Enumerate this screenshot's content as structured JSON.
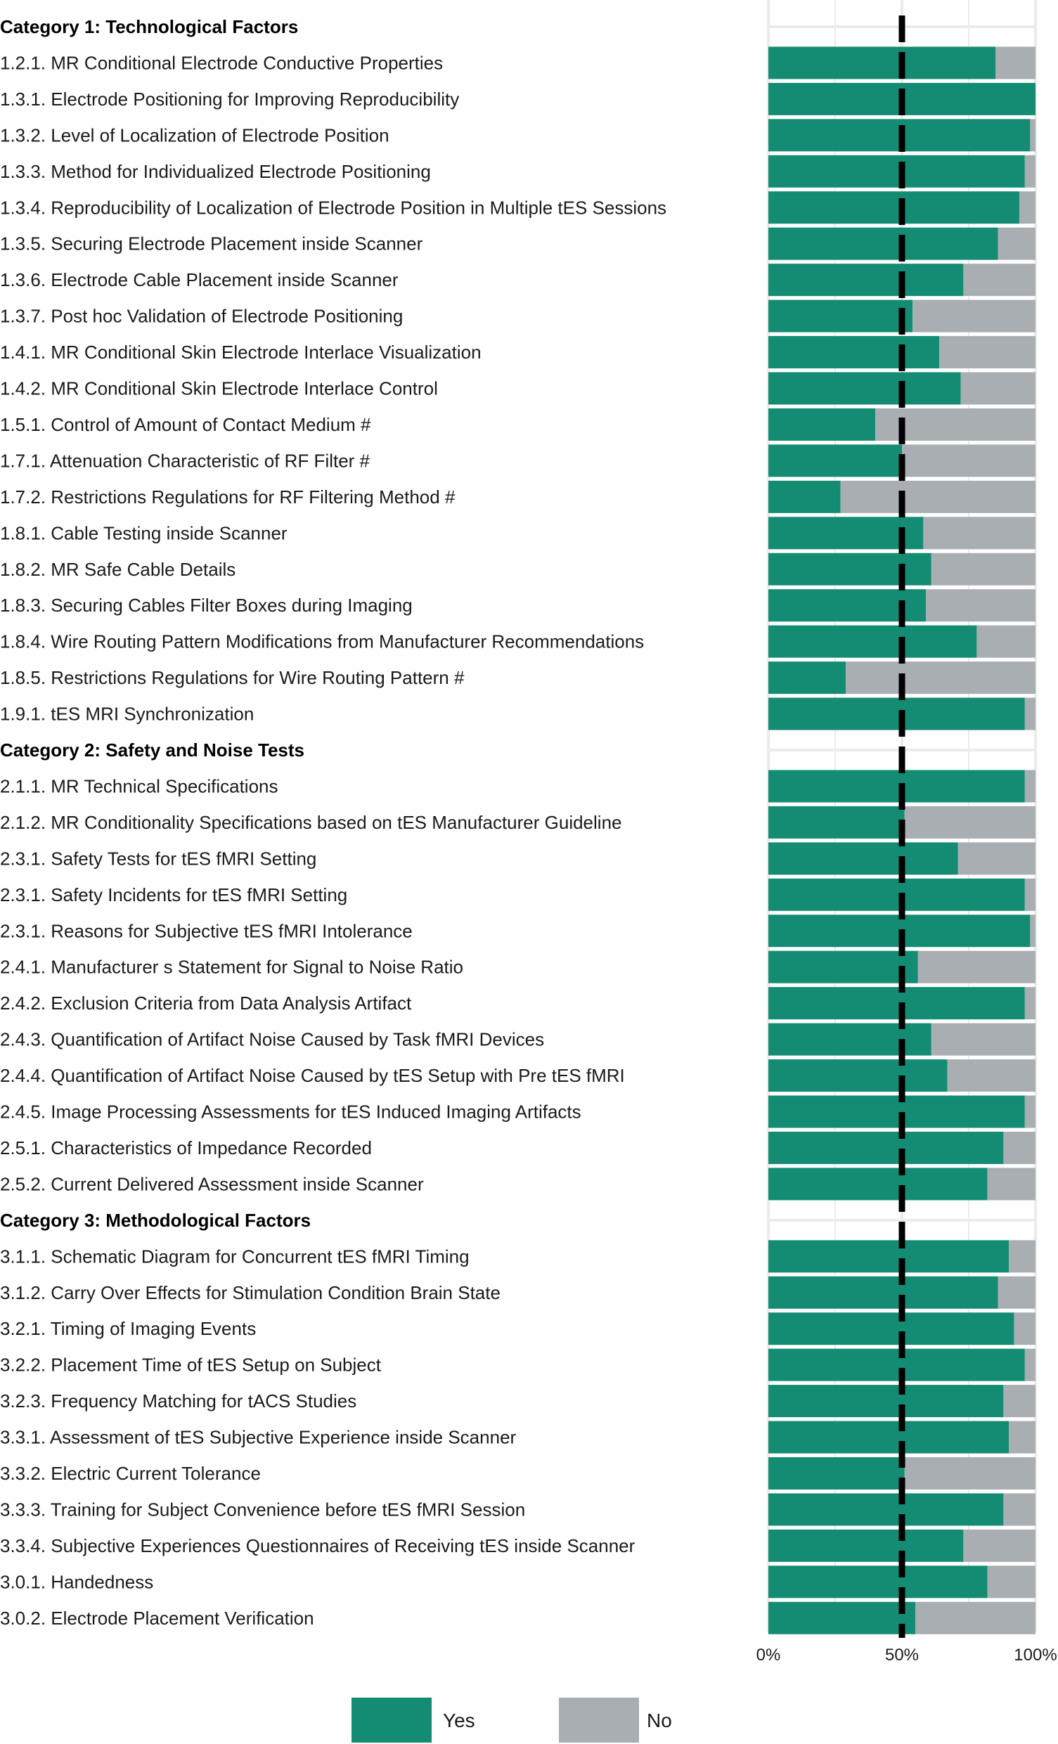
{
  "chart_data": {
    "type": "bar",
    "orientation": "horizontal",
    "stacked": true,
    "xlim": [
      0,
      100
    ],
    "x_ticks": [
      "0%",
      "50%",
      "100%"
    ],
    "reference_line": 50,
    "grid": true,
    "legend_placement": "bottom",
    "colors": {
      "Yes": "#148c73",
      "No": "#a9aeb3"
    },
    "series": [
      {
        "name": "Yes"
      },
      {
        "name": "No"
      }
    ],
    "groups": [
      {
        "title": "Category 1: Technological Factors",
        "items": [
          {
            "label": "1.2.1. MR Conditional Electrode Conductive Properties",
            "yes": 85,
            "no": 15
          },
          {
            "label": "1.3.1. Electrode Positioning for Improving Reproducibility",
            "yes": 100,
            "no": 0
          },
          {
            "label": "1.3.2. Level of Localization of Electrode Position",
            "yes": 98,
            "no": 2
          },
          {
            "label": "1.3.3. Method for Individualized Electrode Positioning",
            "yes": 96,
            "no": 4
          },
          {
            "label": "1.3.4. Reproducibility of Localization of Electrode Position in Multiple tES Sessions",
            "yes": 94,
            "no": 6
          },
          {
            "label": "1.3.5. Securing Electrode Placement inside Scanner",
            "yes": 86,
            "no": 14
          },
          {
            "label": "1.3.6. Electrode Cable Placement inside Scanner",
            "yes": 73,
            "no": 27
          },
          {
            "label": "1.3.7. Post hoc Validation of Electrode Positioning",
            "yes": 54,
            "no": 46
          },
          {
            "label": "1.4.1. MR Conditional Skin Electrode Interlace Visualization",
            "yes": 64,
            "no": 36
          },
          {
            "label": "1.4.2. MR Conditional Skin Electrode Interlace Control",
            "yes": 72,
            "no": 28
          },
          {
            "label": "1.5.1. Control of Amount of Contact Medium #",
            "yes": 40,
            "no": 60
          },
          {
            "label": "1.7.1. Attenuation Characteristic of RF Filter #",
            "yes": 50,
            "no": 50
          },
          {
            "label": "1.7.2. Restrictions Regulations for RF Filtering Method #",
            "yes": 27,
            "no": 73
          },
          {
            "label": "1.8.1. Cable Testing inside Scanner",
            "yes": 58,
            "no": 42
          },
          {
            "label": "1.8.2. MR Safe Cable Details",
            "yes": 61,
            "no": 39
          },
          {
            "label": "1.8.3. Securing Cables Filter Boxes during Imaging",
            "yes": 59,
            "no": 41
          },
          {
            "label": "1.8.4. Wire Routing Pattern Modifications from Manufacturer Recommendations",
            "yes": 78,
            "no": 22
          },
          {
            "label": "1.8.5. Restrictions Regulations for Wire Routing Pattern #",
            "yes": 29,
            "no": 71
          },
          {
            "label": "1.9.1. tES MRI Synchronization",
            "yes": 96,
            "no": 4
          }
        ]
      },
      {
        "title": "Category 2: Safety and Noise Tests",
        "items": [
          {
            "label": "2.1.1. MR Technical Specifications",
            "yes": 96,
            "no": 4
          },
          {
            "label": "2.1.2. MR Conditionality Specifications based on tES Manufacturer Guideline",
            "yes": 51,
            "no": 49
          },
          {
            "label": "2.3.1. Safety Tests for tES fMRI Setting",
            "yes": 71,
            "no": 29
          },
          {
            "label": "2.3.1. Safety Incidents for tES fMRI Setting",
            "yes": 96,
            "no": 4
          },
          {
            "label": "2.3.1. Reasons for Subjective tES fMRI Intolerance",
            "yes": 98,
            "no": 2
          },
          {
            "label": "2.4.1. Manufacturer s Statement for Signal to Noise Ratio",
            "yes": 56,
            "no": 44
          },
          {
            "label": "2.4.2. Exclusion Criteria from Data Analysis Artifact",
            "yes": 96,
            "no": 4
          },
          {
            "label": "2.4.3. Quantification of Artifact Noise Caused by Task fMRI Devices",
            "yes": 61,
            "no": 39
          },
          {
            "label": "2.4.4. Quantification of Artifact Noise Caused by tES Setup with Pre tES fMRI",
            "yes": 67,
            "no": 33
          },
          {
            "label": "2.4.5. Image Processing Assessments for tES Induced Imaging Artifacts",
            "yes": 96,
            "no": 4
          },
          {
            "label": "2.5.1. Characteristics of Impedance Recorded",
            "yes": 88,
            "no": 12
          },
          {
            "label": "2.5.2. Current Delivered Assessment inside Scanner",
            "yes": 82,
            "no": 18
          }
        ]
      },
      {
        "title": "Category 3: Methodological Factors",
        "items": [
          {
            "label": "3.1.1. Schematic Diagram for Concurrent tES fMRI Timing",
            "yes": 90,
            "no": 10
          },
          {
            "label": "3.1.2. Carry Over Effects for Stimulation Condition Brain State",
            "yes": 86,
            "no": 14
          },
          {
            "label": "3.2.1. Timing of Imaging Events",
            "yes": 92,
            "no": 8
          },
          {
            "label": "3.2.2. Placement Time of tES Setup on Subject",
            "yes": 96,
            "no": 4
          },
          {
            "label": "3.2.3. Frequency Matching for tACS Studies",
            "yes": 88,
            "no": 12
          },
          {
            "label": "3.3.1. Assessment of tES Subjective Experience inside Scanner",
            "yes": 90,
            "no": 10
          },
          {
            "label": "3.3.2. Electric Current Tolerance",
            "yes": 51,
            "no": 49
          },
          {
            "label": "3.3.3. Training for Subject Convenience before tES fMRI Session",
            "yes": 88,
            "no": 12
          },
          {
            "label": "3.3.4. Subjective Experiences Questionnaires of Receiving tES inside Scanner",
            "yes": 73,
            "no": 27
          },
          {
            "label": "3.0.1. Handedness",
            "yes": 82,
            "no": 18
          },
          {
            "label": "3.0.2. Electrode Placement Verification",
            "yes": 55,
            "no": 45
          }
        ]
      }
    ]
  }
}
